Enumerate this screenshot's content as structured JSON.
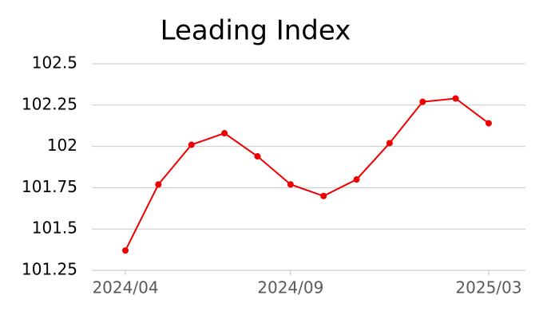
{
  "chart_data": {
    "type": "line",
    "title": "Leading Index",
    "categories": [
      "2024/04",
      null,
      null,
      null,
      null,
      "2024/09",
      null,
      null,
      null,
      null,
      null,
      "2025/03"
    ],
    "series": [
      {
        "name": "Leading Index",
        "color": "#ee0000",
        "values": [
          101.37,
          101.77,
          102.01,
          102.08,
          101.94,
          101.77,
          101.7,
          101.8,
          102.02,
          102.27,
          102.29,
          102.14
        ]
      }
    ],
    "ylim": [
      101.25,
      102.5
    ],
    "yticks": [
      101.25,
      101.5,
      101.75,
      102,
      102.25,
      102.5
    ],
    "grid": true
  }
}
